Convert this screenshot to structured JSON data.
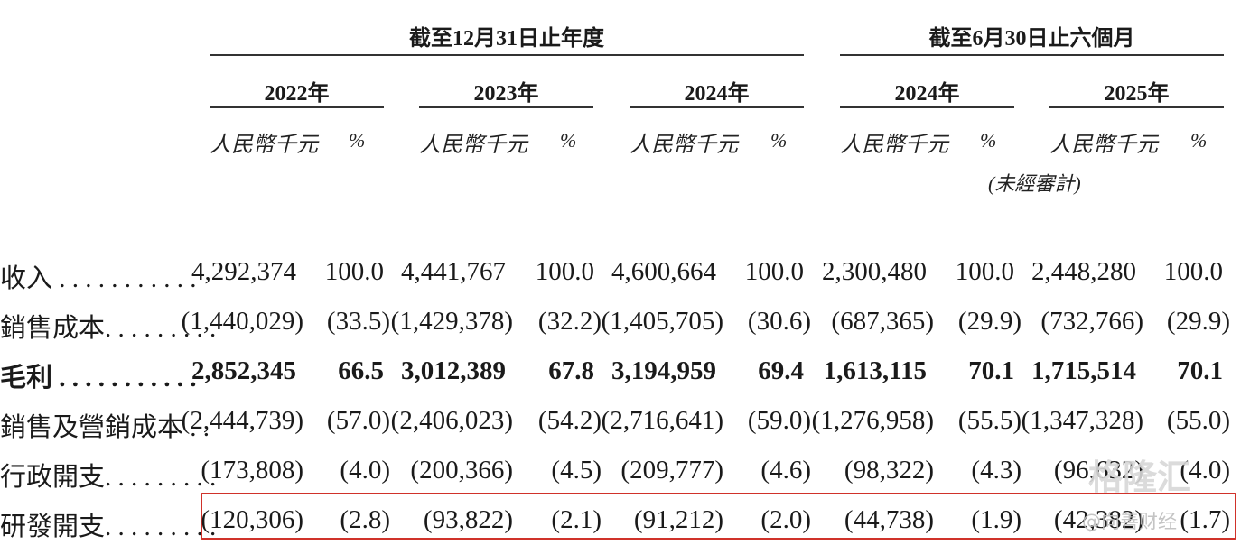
{
  "header": {
    "group1": "截至12月31日止年度",
    "group2": "截至6月30日止六個月",
    "years": [
      "2022年",
      "2023年",
      "2024年",
      "2024年",
      "2025年"
    ],
    "unit": "人民幣千元",
    "pct": "%",
    "unaudited": "(未經審計)"
  },
  "rows": [
    {
      "label": "收入 . . . . . . . . . . .",
      "bold": false,
      "cells": [
        "4,292,374",
        "100.0",
        "4,441,767",
        "100.0",
        "4,600,664",
        "100.0",
        "2,300,480",
        "100.0",
        "2,448,280",
        "100.0"
      ]
    },
    {
      "label": "銷售成本. . . . . . . . .",
      "bold": false,
      "cells": [
        "(1,440,029)",
        "(33.5)",
        "(1,429,378)",
        "(32.2)",
        "(1,405,705)",
        "(30.6)",
        "(687,365)",
        "(29.9)",
        "(732,766)",
        "(29.9)"
      ]
    },
    {
      "label": "毛利 . . . . . . . . . . .",
      "bold": true,
      "cells": [
        "2,852,345",
        "66.5",
        "3,012,389",
        "67.8",
        "3,194,959",
        "69.4",
        "1,613,115",
        "70.1",
        "1,715,514",
        "70.1"
      ]
    },
    {
      "label": "銷售及營銷成本 . .",
      "bold": false,
      "cells": [
        "(2,444,739)",
        "(57.0)",
        "(2,406,023)",
        "(54.2)",
        "(2,716,641)",
        "(59.0)",
        "(1,276,958)",
        "(55.5)",
        "(1,347,328)",
        "(55.0)"
      ]
    },
    {
      "label": "行政開支. . . . . . . . .",
      "bold": false,
      "cells": [
        "(173,808)",
        "(4.0)",
        "(200,366)",
        "(4.5)",
        "(209,777)",
        "(4.6)",
        "(98,322)",
        "(4.3)",
        "(96,632)",
        "(4.0)"
      ]
    },
    {
      "label": "研發開支. . . . . . . . .",
      "bold": false,
      "cells": [
        "(120,306)",
        "(2.8)",
        "(93,822)",
        "(2.1)",
        "(91,212)",
        "(2.0)",
        "(44,738)",
        "(1.9)",
        "(42,382)",
        "(1.7)"
      ]
    }
  ],
  "watermark": {
    "line1": "格隆汇",
    "line2": "@向善财经"
  }
}
